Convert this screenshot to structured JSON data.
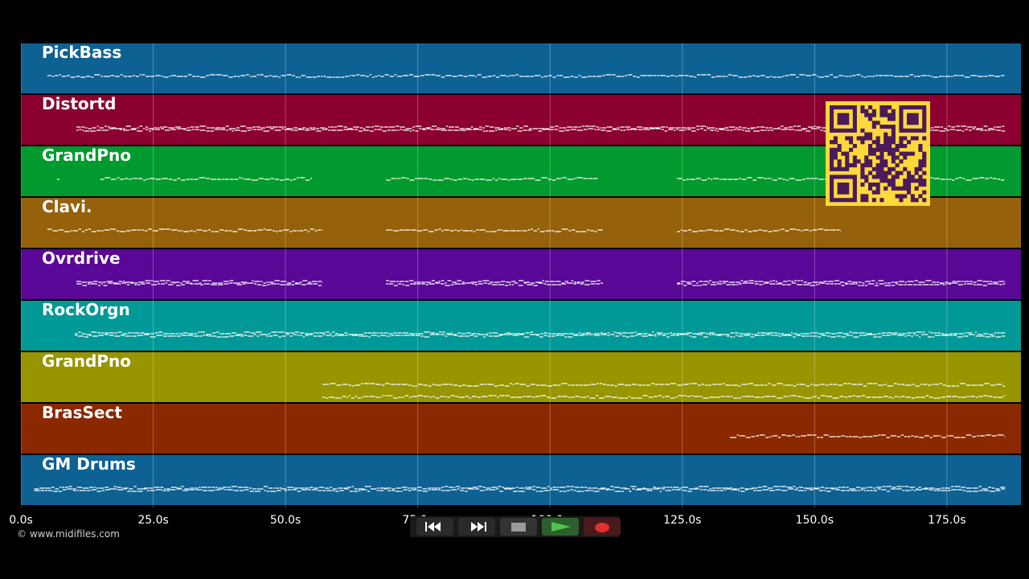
{
  "player": {
    "copyright": "© www.midifiles.com",
    "transport": {
      "rewind_icon": "rewind-icon",
      "fast_forward_icon": "fast-forward-icon",
      "stop_icon": "stop-icon",
      "play_icon": "play-icon",
      "record_icon": "record-icon"
    },
    "qr_code_icon": "qr-code-icon"
  },
  "tracks": [
    {
      "name": "PickBass",
      "color": "#0e6193"
    },
    {
      "name": "Distortd",
      "color": "#8b0030"
    },
    {
      "name": "GrandPno",
      "color": "#009a2e"
    },
    {
      "name": "Clavi.",
      "color": "#95610a"
    },
    {
      "name": "Ovrdrive",
      "color": "#5a0897"
    },
    {
      "name": "RockOrgn",
      "color": "#009997"
    },
    {
      "name": "GrandPno",
      "color": "#979500"
    },
    {
      "name": "BrasSect",
      "color": "#8a2800"
    },
    {
      "name": "GM Drums",
      "color": "#0e6193"
    }
  ],
  "chart_data": {
    "type": "piano-roll",
    "x_unit": "seconds",
    "xlim": [
      0,
      189
    ],
    "xticks": [
      "0.0s",
      "25.0s",
      "50.0s",
      "75.0s",
      "100.0s",
      "125.0s",
      "150.0s",
      "175.0s"
    ],
    "xtick_values": [
      0,
      25,
      50,
      75,
      100,
      125,
      150,
      175
    ],
    "grid": true,
    "track_note_segments": [
      [
        [
          5,
          186
        ]
      ],
      [
        [
          10.5,
          186
        ]
      ],
      [
        [
          6.8,
          7.3
        ],
        [
          15,
          55
        ],
        [
          69,
          109
        ],
        [
          124,
          186
        ]
      ],
      [
        [
          5,
          57
        ],
        [
          69,
          110
        ],
        [
          124,
          155
        ]
      ],
      [
        [
          10.5,
          57
        ],
        [
          69,
          110
        ],
        [
          124,
          186
        ]
      ],
      [
        [
          10.2,
          186
        ]
      ],
      [
        [
          57,
          186
        ]
      ],
      [
        [
          134,
          186
        ]
      ],
      [
        [
          2.5,
          186
        ]
      ]
    ]
  }
}
